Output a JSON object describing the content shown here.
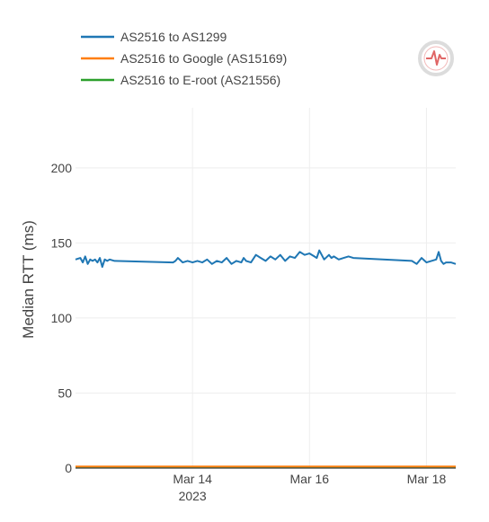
{
  "chart_data": {
    "type": "line",
    "title": "",
    "xlabel": "",
    "ylabel": "Median RTT (ms)",
    "ylim": [
      0,
      240
    ],
    "yticks": [
      0,
      50,
      100,
      150,
      200
    ],
    "xlim": [
      "2023-03-12 00:00",
      "2023-03-18 12:00"
    ],
    "xticks": [
      {
        "date": "2023-03-14",
        "label": "Mar 14",
        "sublabel": "2023"
      },
      {
        "date": "2023-03-16",
        "label": "Mar 16",
        "sublabel": ""
      },
      {
        "date": "2023-03-18",
        "label": "Mar 18",
        "sublabel": ""
      }
    ],
    "grid": true,
    "legend_position": "top-left",
    "series": [
      {
        "name": "AS2516 to AS1299",
        "color": "#1f77b4",
        "x": [
          "2023-03-12 00:00",
          "2023-03-12 02:00",
          "2023-03-12 03:00",
          "2023-03-12 04:00",
          "2023-03-12 05:00",
          "2023-03-12 06:00",
          "2023-03-12 07:00",
          "2023-03-12 08:00",
          "2023-03-12 09:00",
          "2023-03-12 10:00",
          "2023-03-12 11:00",
          "2023-03-12 12:00",
          "2023-03-12 13:00",
          "2023-03-12 14:00",
          "2023-03-12 16:00",
          "2023-03-13 16:00",
          "2023-03-13 17:00",
          "2023-03-13 18:00",
          "2023-03-13 20:00",
          "2023-03-13 22:00",
          "2023-03-14 00:00",
          "2023-03-14 02:00",
          "2023-03-14 04:00",
          "2023-03-14 06:00",
          "2023-03-14 08:00",
          "2023-03-14 10:00",
          "2023-03-14 12:00",
          "2023-03-14 14:00",
          "2023-03-14 16:00",
          "2023-03-14 18:00",
          "2023-03-14 20:00",
          "2023-03-14 21:00",
          "2023-03-14 22:00",
          "2023-03-15 00:00",
          "2023-03-15 02:00",
          "2023-03-15 04:00",
          "2023-03-15 06:00",
          "2023-03-15 08:00",
          "2023-03-15 10:00",
          "2023-03-15 12:00",
          "2023-03-15 14:00",
          "2023-03-15 16:00",
          "2023-03-15 18:00",
          "2023-03-15 20:00",
          "2023-03-15 22:00",
          "2023-03-16 00:00",
          "2023-03-16 02:00",
          "2023-03-16 03:00",
          "2023-03-16 04:00",
          "2023-03-16 06:00",
          "2023-03-16 08:00",
          "2023-03-16 09:00",
          "2023-03-16 10:00",
          "2023-03-16 12:00",
          "2023-03-16 14:00",
          "2023-03-16 16:00",
          "2023-03-16 18:00",
          "2023-03-17 18:00",
          "2023-03-17 20:00",
          "2023-03-17 22:00",
          "2023-03-18 00:00",
          "2023-03-18 02:00",
          "2023-03-18 04:00",
          "2023-03-18 05:00",
          "2023-03-18 06:00",
          "2023-03-18 07:00",
          "2023-03-18 08:00",
          "2023-03-18 10:00",
          "2023-03-18 12:00"
        ],
        "y": [
          139,
          140,
          137,
          141,
          136,
          139,
          138,
          139,
          137,
          140,
          134,
          139,
          138,
          139,
          138,
          137,
          138,
          140,
          137,
          138,
          137,
          138,
          137,
          139,
          136,
          138,
          137,
          140,
          136,
          138,
          137,
          140,
          138,
          137,
          142,
          140,
          138,
          141,
          139,
          142,
          138,
          141,
          140,
          144,
          142,
          143,
          141,
          140,
          145,
          139,
          142,
          140,
          141,
          139,
          140,
          141,
          140,
          138,
          136,
          140,
          137,
          138,
          139,
          144,
          138,
          136,
          137,
          137,
          136
        ]
      },
      {
        "name": "AS2516 to Google (AS15169)",
        "color": "#ff7f0e",
        "x": [
          "2023-03-12 00:00",
          "2023-03-13 12:00",
          "2023-03-14 12:00",
          "2023-03-15 12:00",
          "2023-03-16 12:00",
          "2023-03-17 12:00",
          "2023-03-18 12:00"
        ],
        "y": [
          1,
          1,
          1,
          1,
          1,
          1,
          1
        ]
      },
      {
        "name": "AS2516 to E-root (AS21556)",
        "color": "#2ca02c",
        "x": [
          "2023-03-12 00:00",
          "2023-03-13 12:00",
          "2023-03-14 12:00",
          "2023-03-15 12:00",
          "2023-03-16 12:00",
          "2023-03-17 12:00",
          "2023-03-18 12:00"
        ],
        "y": [
          0.5,
          0.5,
          0.5,
          0.5,
          0.5,
          0.5,
          0.5
        ]
      }
    ]
  },
  "icons": {
    "logo": "ioda-heartbeat-logo-icon",
    "logo_color": "#e06666"
  }
}
